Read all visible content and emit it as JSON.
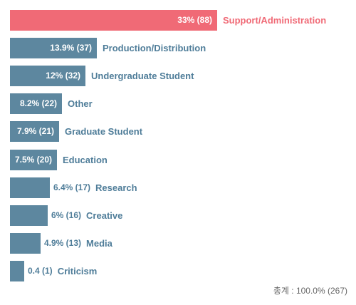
{
  "chart_data": {
    "type": "bar",
    "orientation": "horizontal",
    "categories": [
      "Support/Administration",
      "Production/Distribution",
      "Undergraduate Student",
      "Other",
      "Graduate Student",
      "Education",
      "Research",
      "Creative",
      "Media",
      "Criticism"
    ],
    "values": [
      88,
      37,
      32,
      22,
      21,
      20,
      17,
      16,
      13,
      1
    ],
    "value_labels": [
      "33% (88)",
      "13.9% (37)",
      "12% (32)",
      "8.2% (22)",
      "7.9% (21)",
      "7.5% (20)",
      "6.4% (17)",
      "6% (16)",
      "4.9% (13)",
      "0.4 (1)"
    ],
    "highlight_index": 0,
    "colors": {
      "highlight": "#f06a76",
      "default": "#5d879f",
      "highlight_text": "#f06a76",
      "default_text": "#4f7d99"
    },
    "xlim": [
      0,
      88
    ]
  },
  "total": {
    "label": "총계 : 100.0% (267)"
  }
}
